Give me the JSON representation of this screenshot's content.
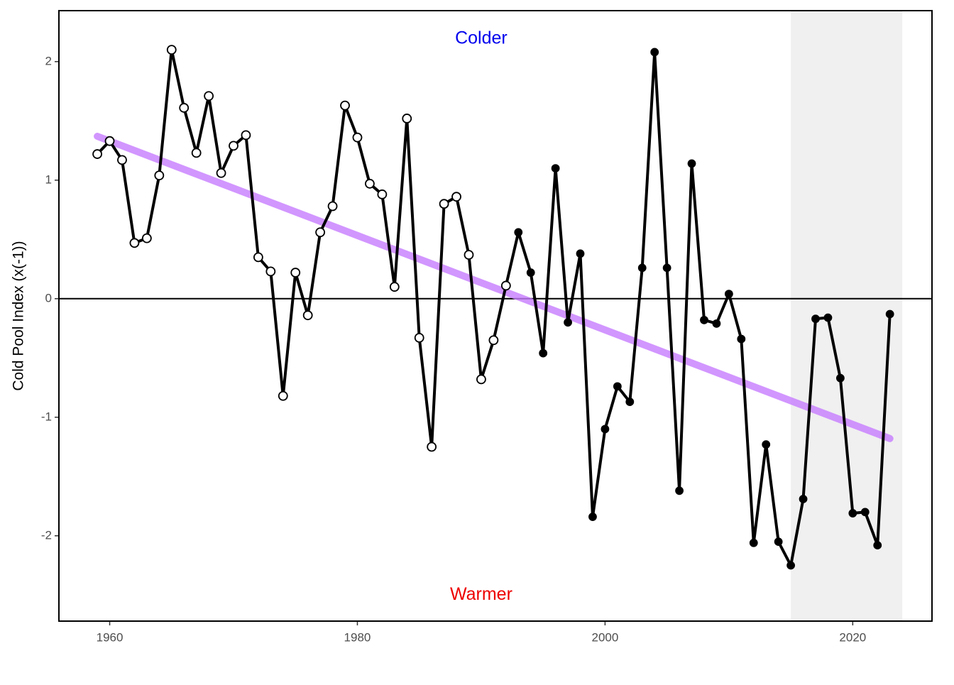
{
  "chart_data": {
    "type": "line",
    "y_label": "Cold Pool Index (x(-1))",
    "x": [
      1959,
      1960,
      1961,
      1962,
      1963,
      1964,
      1965,
      1966,
      1967,
      1968,
      1969,
      1970,
      1971,
      1972,
      1973,
      1974,
      1975,
      1976,
      1977,
      1978,
      1979,
      1980,
      1981,
      1982,
      1983,
      1984,
      1985,
      1986,
      1987,
      1988,
      1989,
      1990,
      1991,
      1992,
      1993,
      1994,
      1995,
      1996,
      1997,
      1998,
      1999,
      2000,
      2001,
      2002,
      2003,
      2004,
      2005,
      2006,
      2007,
      2008,
      2009,
      2010,
      2011,
      2012,
      2013,
      2014,
      2015,
      2016,
      2017,
      2018,
      2019,
      2020,
      2021,
      2022,
      2023
    ],
    "values": [
      1.22,
      1.33,
      1.17,
      0.47,
      0.51,
      1.04,
      2.1,
      1.61,
      1.23,
      1.71,
      1.06,
      1.29,
      1.38,
      0.35,
      0.23,
      -0.82,
      0.22,
      -0.14,
      0.56,
      0.78,
      1.63,
      1.36,
      0.97,
      0.88,
      0.1,
      1.52,
      -0.33,
      -1.25,
      0.8,
      0.86,
      0.37,
      -0.68,
      -0.35,
      0.11,
      0.56,
      0.22,
      -0.46,
      1.1,
      -0.2,
      0.38,
      -1.84,
      -1.1,
      -0.74,
      -0.87,
      0.26,
      2.08,
      0.26,
      -1.62,
      1.14,
      -0.18,
      -0.21,
      0.04,
      -0.34,
      -2.06,
      -1.23,
      -2.05,
      -2.25,
      -1.69,
      -0.17,
      -0.16,
      -0.67,
      -1.81,
      -1.8,
      -2.08,
      -0.13
    ],
    "color": "#000000",
    "filled_from_x": 1993,
    "trend": {
      "x": [
        1959,
        2023
      ],
      "values": [
        1.37,
        -1.18
      ],
      "color": "#c77cff"
    },
    "shade": {
      "x": [
        2015,
        2024
      ],
      "color": "#f0f0f0"
    },
    "hline": 0,
    "annotations": [
      {
        "text": "Colder",
        "x": 1990,
        "y": 2.19,
        "color": "#0000ee"
      },
      {
        "text": "Warmer",
        "x": 1990,
        "y": -2.5,
        "color": "#ee0000"
      }
    ],
    "xlim": [
      1955.9,
      2026.4
    ],
    "ylim": [
      -2.72,
      2.43
    ],
    "xticks": [
      1960,
      1980,
      2000,
      2020
    ],
    "yticks": [
      -2,
      -1,
      0,
      1,
      2
    ]
  }
}
